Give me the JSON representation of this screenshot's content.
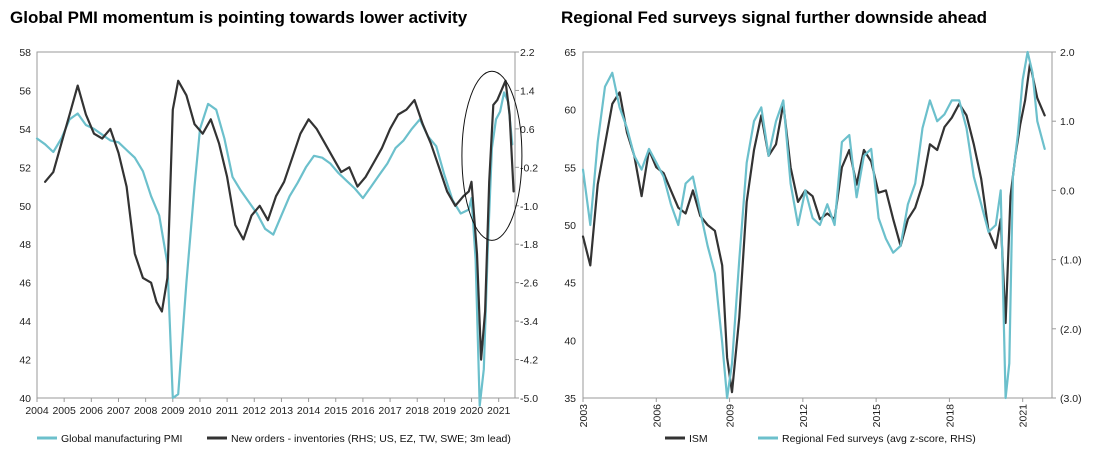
{
  "chart_data": [
    {
      "type": "line",
      "title": "Global PMI momentum is pointing towards lower activity",
      "x_ticks": [
        "2004",
        "2005",
        "2006",
        "2007",
        "2008",
        "2009",
        "2010",
        "2011",
        "2012",
        "2013",
        "2014",
        "2015",
        "2016",
        "2017",
        "2018",
        "2019",
        "2020",
        "2021"
      ],
      "xlim": [
        2004.0,
        2021.6
      ],
      "left_axis": {
        "ylim": [
          40,
          58
        ],
        "ticks": [
          "40",
          "42",
          "44",
          "46",
          "48",
          "50",
          "52",
          "54",
          "56",
          "58"
        ]
      },
      "right_axis": {
        "ylim": [
          -5.0,
          2.2
        ],
        "ticks": [
          "-5.0",
          "-4.2",
          "-3.4",
          "-2.6",
          "-1.8",
          "-1.0",
          "-0.2",
          "0.6",
          "1.4",
          "2.2"
        ]
      },
      "annotation": "ellipse highlighting 2020-2021",
      "series": [
        {
          "name": "Global manufacturing PMI",
          "axis": "left",
          "color": "#6cc0cc",
          "x": [
            2004.0,
            2004.3,
            2004.6,
            2004.9,
            2005.2,
            2005.5,
            2005.8,
            2006.1,
            2006.4,
            2006.7,
            2007.0,
            2007.3,
            2007.6,
            2007.9,
            2008.2,
            2008.5,
            2008.8,
            2009.0,
            2009.2,
            2009.5,
            2009.8,
            2010.0,
            2010.3,
            2010.6,
            2010.9,
            2011.2,
            2011.5,
            2011.8,
            2012.1,
            2012.4,
            2012.7,
            2013.0,
            2013.3,
            2013.6,
            2013.9,
            2014.2,
            2014.5,
            2014.8,
            2015.1,
            2015.4,
            2015.7,
            2016.0,
            2016.3,
            2016.6,
            2016.9,
            2017.2,
            2017.5,
            2017.8,
            2018.1,
            2018.4,
            2018.7,
            2019.0,
            2019.3,
            2019.6,
            2019.9,
            2020.0,
            2020.15,
            2020.3,
            2020.45,
            2020.6,
            2020.75,
            2020.9,
            2021.05,
            2021.2,
            2021.35,
            2021.5
          ],
          "values": [
            53.5,
            53.2,
            52.8,
            53.5,
            54.5,
            54.8,
            54.2,
            54.0,
            53.7,
            53.4,
            53.3,
            52.9,
            52.5,
            51.8,
            50.5,
            49.5,
            47.0,
            40.0,
            40.2,
            46.0,
            51.0,
            54.0,
            55.3,
            55.0,
            53.5,
            51.5,
            50.8,
            50.2,
            49.6,
            48.8,
            48.5,
            49.5,
            50.5,
            51.2,
            52.0,
            52.6,
            52.5,
            52.2,
            51.7,
            51.3,
            50.9,
            50.4,
            51.0,
            51.6,
            52.2,
            53.0,
            53.4,
            54.0,
            54.5,
            53.6,
            53.1,
            51.6,
            50.3,
            49.6,
            49.8,
            50.4,
            47.2,
            39.6,
            41.5,
            47.8,
            53.0,
            54.5,
            54.9,
            55.9,
            55.4,
            53.2
          ]
        },
        {
          "name": "New orders - inventories (RHS; US, EZ, TW, SWE; 3m lead)",
          "axis": "right",
          "color": "#333333",
          "x": [
            2004.3,
            2004.6,
            2004.9,
            2005.2,
            2005.5,
            2005.8,
            2006.1,
            2006.4,
            2006.7,
            2007.0,
            2007.3,
            2007.6,
            2007.9,
            2008.2,
            2008.4,
            2008.6,
            2008.8,
            2009.0,
            2009.2,
            2009.5,
            2009.8,
            2010.1,
            2010.4,
            2010.7,
            2011.0,
            2011.3,
            2011.6,
            2011.9,
            2012.2,
            2012.5,
            2012.8,
            2013.1,
            2013.4,
            2013.7,
            2014.0,
            2014.3,
            2014.6,
            2014.9,
            2015.2,
            2015.5,
            2015.8,
            2016.1,
            2016.4,
            2016.7,
            2017.0,
            2017.3,
            2017.6,
            2017.9,
            2018.2,
            2018.5,
            2018.8,
            2019.1,
            2019.4,
            2019.7,
            2019.9,
            2020.0,
            2020.2,
            2020.35,
            2020.5,
            2020.65,
            2020.8,
            2020.95,
            2021.1,
            2021.25,
            2021.4,
            2021.55
          ],
          "values": [
            -0.5,
            -0.3,
            0.3,
            0.9,
            1.5,
            0.9,
            0.5,
            0.4,
            0.6,
            0.1,
            -0.6,
            -2.0,
            -2.5,
            -2.6,
            -3.0,
            -3.2,
            -2.5,
            1.0,
            1.6,
            1.3,
            0.7,
            0.5,
            0.8,
            0.3,
            -0.4,
            -1.4,
            -1.7,
            -1.2,
            -1.0,
            -1.3,
            -0.8,
            -0.5,
            0.0,
            0.5,
            0.8,
            0.6,
            0.3,
            0.0,
            -0.3,
            -0.2,
            -0.6,
            -0.4,
            -0.1,
            0.2,
            0.6,
            0.9,
            1.0,
            1.2,
            0.7,
            0.3,
            -0.2,
            -0.7,
            -1.0,
            -0.8,
            -0.7,
            -0.5,
            -2.0,
            -4.2,
            -3.2,
            -0.5,
            1.1,
            1.2,
            1.4,
            1.6,
            0.9,
            -0.7
          ]
        }
      ]
    },
    {
      "type": "line",
      "title": "Regional Fed surveys signal further downside ahead",
      "x_ticks": [
        "2003",
        "2006",
        "2009",
        "2012",
        "2015",
        "2018",
        "2021"
      ],
      "xlim": [
        2003.0,
        2022.2
      ],
      "left_axis": {
        "ylim": [
          35,
          65
        ],
        "ticks": [
          "35",
          "40",
          "45",
          "50",
          "55",
          "60",
          "65"
        ]
      },
      "right_axis": {
        "ylim": [
          -3.0,
          2.0
        ],
        "ticks": [
          "(3.0)",
          "(2.0)",
          "(1.0)",
          "0.0",
          "1.0",
          "2.0"
        ]
      },
      "series": [
        {
          "name": "ISM",
          "axis": "left",
          "color": "#333333",
          "x": [
            2003.0,
            2003.3,
            2003.6,
            2003.9,
            2004.2,
            2004.5,
            2004.8,
            2005.1,
            2005.4,
            2005.7,
            2006.0,
            2006.3,
            2006.6,
            2006.9,
            2007.2,
            2007.5,
            2007.8,
            2008.1,
            2008.4,
            2008.7,
            2008.9,
            2009.1,
            2009.4,
            2009.7,
            2010.0,
            2010.3,
            2010.6,
            2010.9,
            2011.2,
            2011.5,
            2011.8,
            2012.1,
            2012.4,
            2012.7,
            2013.0,
            2013.3,
            2013.6,
            2013.9,
            2014.2,
            2014.5,
            2014.8,
            2015.1,
            2015.4,
            2015.7,
            2016.0,
            2016.3,
            2016.6,
            2016.9,
            2017.2,
            2017.5,
            2017.8,
            2018.1,
            2018.4,
            2018.7,
            2019.0,
            2019.3,
            2019.6,
            2019.9,
            2020.1,
            2020.3,
            2020.5,
            2020.7,
            2020.9,
            2021.1,
            2021.3,
            2021.6,
            2021.9
          ],
          "values": [
            49.0,
            46.5,
            53.5,
            57.0,
            60.5,
            61.5,
            58.0,
            56.0,
            52.5,
            56.5,
            55.0,
            54.5,
            53.0,
            51.5,
            51.0,
            53.0,
            50.8,
            50.0,
            49.5,
            46.5,
            38.5,
            35.5,
            42.0,
            52.0,
            56.5,
            59.5,
            56.0,
            57.0,
            60.5,
            55.0,
            52.0,
            53.0,
            52.5,
            50.5,
            51.0,
            50.5,
            55.0,
            56.5,
            53.5,
            56.5,
            55.5,
            52.8,
            53.0,
            50.5,
            48.2,
            50.5,
            51.5,
            53.5,
            57.0,
            56.5,
            58.5,
            59.3,
            60.5,
            59.5,
            57.0,
            54.0,
            49.5,
            48.0,
            50.5,
            41.5,
            52.5,
            56.0,
            58.7,
            60.8,
            64.0,
            61.0,
            59.5
          ]
        },
        {
          "name": "Regional Fed surveys (avg z-score, RHS)",
          "axis": "right",
          "color": "#6cc0cc",
          "x": [
            2003.0,
            2003.3,
            2003.6,
            2003.9,
            2004.2,
            2004.5,
            2004.8,
            2005.1,
            2005.4,
            2005.7,
            2006.0,
            2006.3,
            2006.6,
            2006.9,
            2007.2,
            2007.5,
            2007.8,
            2008.1,
            2008.4,
            2008.7,
            2008.9,
            2009.1,
            2009.4,
            2009.7,
            2010.0,
            2010.3,
            2010.6,
            2010.9,
            2011.2,
            2011.5,
            2011.8,
            2012.1,
            2012.4,
            2012.7,
            2013.0,
            2013.3,
            2013.6,
            2013.9,
            2014.2,
            2014.5,
            2014.8,
            2015.1,
            2015.4,
            2015.7,
            2016.0,
            2016.3,
            2016.6,
            2016.9,
            2017.2,
            2017.5,
            2017.8,
            2018.1,
            2018.4,
            2018.7,
            2019.0,
            2019.3,
            2019.6,
            2019.9,
            2020.1,
            2020.3,
            2020.45,
            2020.6,
            2020.8,
            2021.0,
            2021.2,
            2021.4,
            2021.6,
            2021.9
          ],
          "values": [
            0.3,
            -0.5,
            0.7,
            1.5,
            1.7,
            1.2,
            0.9,
            0.5,
            0.3,
            0.6,
            0.4,
            0.2,
            -0.2,
            -0.5,
            0.1,
            0.2,
            -0.3,
            -0.8,
            -1.2,
            -2.2,
            -3.0,
            -2.5,
            -1.0,
            0.4,
            1.0,
            1.2,
            0.5,
            1.0,
            1.3,
            0.1,
            -0.5,
            0.0,
            -0.4,
            -0.5,
            -0.2,
            -0.5,
            0.7,
            0.8,
            -0.1,
            0.5,
            0.6,
            -0.4,
            -0.7,
            -0.9,
            -0.8,
            -0.2,
            0.1,
            0.9,
            1.3,
            1.0,
            1.1,
            1.3,
            1.3,
            0.9,
            0.2,
            -0.2,
            -0.6,
            -0.5,
            0.0,
            -3.0,
            -2.5,
            0.2,
            0.8,
            1.6,
            2.0,
            1.7,
            1.0,
            0.6
          ]
        }
      ]
    }
  ]
}
